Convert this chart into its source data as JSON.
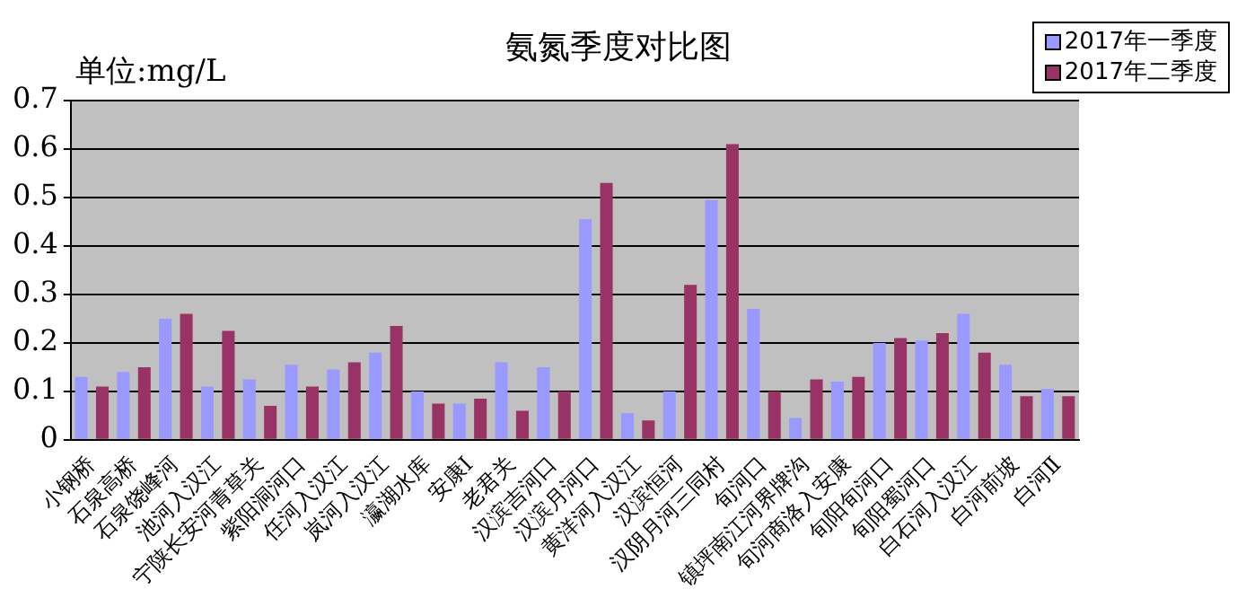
{
  "chart_data": {
    "type": "bar",
    "title": "氨氮季度对比图",
    "ylabel": "单位:mg/L",
    "categories": [
      "小钢桥",
      "石泉高桥",
      "石泉饶峰河",
      "池河入汉江",
      "宁陕长安河青草关",
      "紫阳洞河口",
      "任河入汉江",
      "岚河入汉江",
      "瀛湖水库",
      "安康Ⅰ",
      "老君关",
      "汉滨吉河口",
      "汉滨月河口",
      "黄洋河入汉江",
      "汉滨恒河",
      "汉阴月河三同村",
      "旬河口",
      "镇坪南江河界牌沟",
      "旬河商洛入安康",
      "旬阳旬河口",
      "旬阳蜀河口",
      "白石河入汉江",
      "白河前坡",
      "白河Ⅱ"
    ],
    "series": [
      {
        "name": "2017年一季度",
        "color": "#9999ff",
        "values": [
          0.13,
          0.14,
          0.25,
          0.11,
          0.125,
          0.155,
          0.145,
          0.18,
          0.1,
          0.075,
          0.16,
          0.15,
          0.455,
          0.055,
          0.1,
          0.495,
          0.27,
          0.045,
          0.12,
          0.2,
          0.205,
          0.26,
          0.155,
          0.105
        ]
      },
      {
        "name": "2017年二季度",
        "color": "#993366",
        "values": [
          0.11,
          0.15,
          0.26,
          0.225,
          0.07,
          0.11,
          0.16,
          0.235,
          0.075,
          0.085,
          0.06,
          0.1,
          0.53,
          0.04,
          0.32,
          0.61,
          0.1,
          0.125,
          0.13,
          0.21,
          0.22,
          0.18,
          0.09,
          0.09
        ]
      }
    ],
    "ylim": [
      0,
      0.7
    ],
    "yticks": [
      0,
      0.1,
      0.2,
      0.3,
      0.4,
      0.5,
      0.6,
      0.7
    ],
    "grid": "y",
    "legend": "top right"
  }
}
